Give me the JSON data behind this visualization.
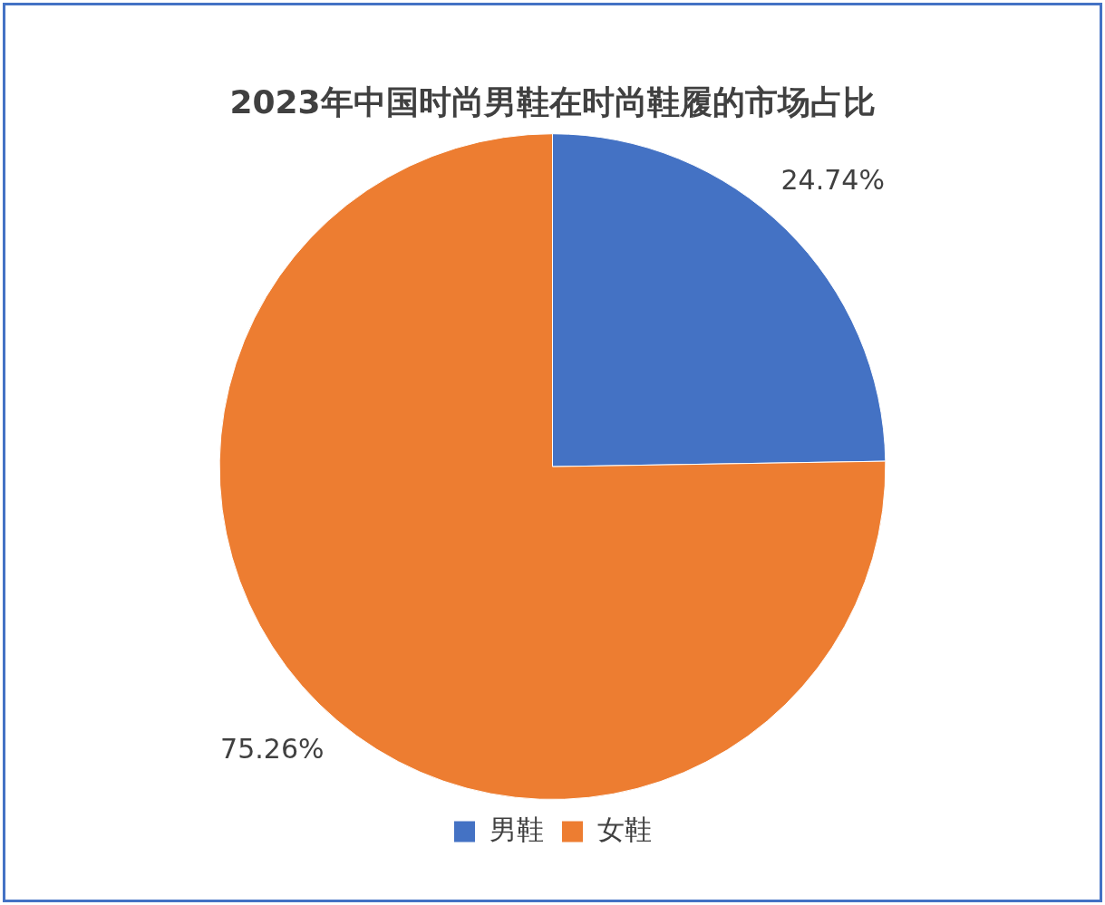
{
  "chart_data": {
    "type": "pie",
    "title": "2023年中国时尚男鞋在时尚鞋履的市场占比",
    "categories": [
      "男鞋",
      "女鞋"
    ],
    "values": [
      24.74,
      75.26
    ],
    "colors": [
      "#4472c4",
      "#ed7d31"
    ],
    "value_labels": [
      "24.74%",
      "75.26%"
    ],
    "legend": "bottom"
  }
}
